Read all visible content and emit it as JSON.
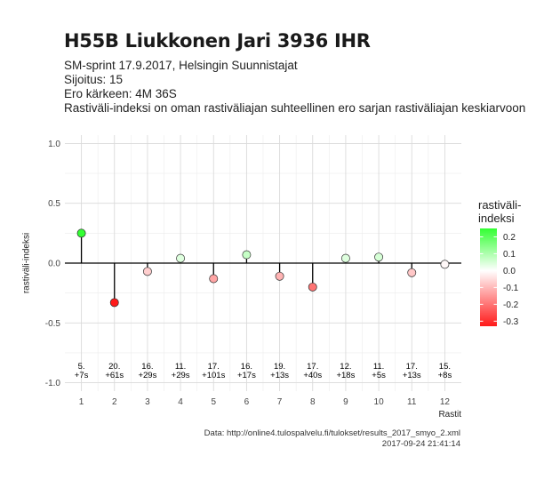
{
  "header": {
    "title": "H55B Liukkonen Jari 3936 IHR",
    "subtitle_lines": [
      "SM-sprint 17.9.2017, Helsingin Suunnistajat",
      "Sijoitus: 15",
      "Ero kärkeen: 4M 36S",
      "Rastiväli-indeksi on oman rastiväliajan suhteellinen ero sarjan rastiväliajan keskiarvoon"
    ]
  },
  "caption": {
    "source": "Data: http://online4.tulospalvelu.fi/tulokset/results_2017_smyo_2.xml",
    "timestamp": "2017-09-24 21:41:14"
  },
  "chart_data": {
    "type": "scatter",
    "title": "H55B Liukkonen Jari 3936 IHR",
    "xlabel": "Rastit",
    "ylabel": "rastiväli-indeksi",
    "x": [
      1,
      2,
      3,
      4,
      5,
      6,
      7,
      8,
      9,
      10,
      11,
      12
    ],
    "values": [
      0.25,
      -0.33,
      -0.07,
      0.04,
      -0.13,
      0.07,
      -0.11,
      -0.2,
      0.04,
      0.05,
      -0.08,
      -0.01
    ],
    "point_labels": [
      "5.\n+7s",
      "20.\n+61s",
      "16.\n+29s",
      "11.\n+29s",
      "17.\n+101s",
      "16.\n+17s",
      "19.\n+13s",
      "17.\n+40s",
      "12.\n+18s",
      "11.\n+5s",
      "17.\n+13s",
      "15.\n+8s"
    ],
    "xlim": [
      0.5,
      12.5
    ],
    "ylim": [
      -1.07,
      1.07
    ],
    "x_ticks": [
      1,
      2,
      3,
      4,
      5,
      6,
      7,
      8,
      9,
      10,
      11,
      12
    ],
    "y_ticks": [
      -1.0,
      -0.5,
      0.0,
      0.5,
      1.0
    ],
    "y_tick_labels": [
      "-1.0",
      "-0.5",
      "0.0",
      "0.5",
      "1.0"
    ],
    "grid": true,
    "baseline": 0,
    "legend": {
      "title": "rastiväli-\nindeksi",
      "placement": "right",
      "ticks": [
        0.2,
        0.1,
        0.0,
        -0.1,
        -0.2,
        -0.3
      ],
      "tick_labels": [
        "0.2",
        "0.1",
        "0.0",
        "-0.1",
        "-0.2",
        "-0.3"
      ],
      "range": [
        -0.33,
        0.25
      ],
      "colors": {
        "low": "#ff1a1a",
        "mid": "#ffffff",
        "high": "#33ff33"
      }
    }
  }
}
